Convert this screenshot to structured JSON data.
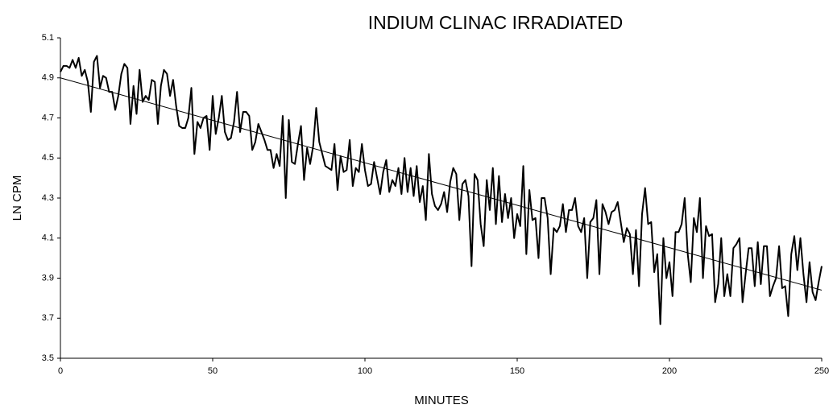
{
  "chart_data": {
    "type": "line",
    "title": "INDIUM CLINAC IRRADIATED",
    "x_label": "MINUTES",
    "y_label": "LN CPM",
    "xlim": [
      0,
      250
    ],
    "xticks": [
      0,
      50,
      100,
      150,
      200,
      250
    ],
    "ylim": [
      3.5,
      5.1
    ],
    "yticks": [
      3.5,
      3.7,
      3.9,
      4.1,
      4.3,
      4.5,
      4.7,
      4.9,
      5.1
    ],
    "grid": false,
    "x": [
      0,
      1,
      2,
      3,
      4,
      5,
      6,
      7,
      8,
      9,
      10,
      11,
      12,
      13,
      14,
      15,
      16,
      17,
      18,
      19,
      20,
      21,
      22,
      23,
      24,
      25,
      26,
      27,
      28,
      29,
      30,
      31,
      32,
      33,
      34,
      35,
      36,
      37,
      38,
      39,
      40,
      41,
      42,
      43,
      44,
      45,
      46,
      47,
      48,
      49,
      50,
      51,
      52,
      53,
      54,
      55,
      56,
      57,
      58,
      59,
      60,
      61,
      62,
      63,
      64,
      65,
      66,
      67,
      68,
      69,
      70,
      71,
      72,
      73,
      74,
      75,
      76,
      77,
      78,
      79,
      80,
      81,
      82,
      83,
      84,
      85,
      86,
      87,
      88,
      89,
      90,
      91,
      92,
      93,
      94,
      95,
      96,
      97,
      98,
      99,
      100,
      101,
      102,
      103,
      104,
      105,
      106,
      107,
      108,
      109,
      110,
      111,
      112,
      113,
      114,
      115,
      116,
      117,
      118,
      119,
      120,
      121,
      122,
      123,
      124,
      125,
      126,
      127,
      128,
      129,
      130,
      131,
      132,
      133,
      134,
      135,
      136,
      137,
      138,
      139,
      140,
      141,
      142,
      143,
      144,
      145,
      146,
      147,
      148,
      149,
      150,
      151,
      152,
      153,
      154,
      155,
      156,
      157,
      158,
      159,
      160,
      161,
      162,
      163,
      164,
      165,
      166,
      167,
      168,
      169,
      170,
      171,
      172,
      173,
      174,
      175,
      176,
      177,
      178,
      179,
      180,
      181,
      182,
      183,
      184,
      185,
      186,
      187,
      188,
      189,
      190,
      191,
      192,
      193,
      194,
      195,
      196,
      197,
      198,
      199,
      200,
      201,
      202,
      203,
      204,
      205,
      206,
      207,
      208,
      209,
      210,
      211,
      212,
      213,
      214,
      215,
      216,
      217,
      218,
      219,
      220,
      221,
      222,
      223,
      224,
      225,
      226,
      227,
      228,
      229,
      230,
      231,
      232,
      233,
      234,
      235,
      236,
      237,
      238,
      239,
      240,
      241,
      242,
      243,
      244,
      245,
      246,
      247,
      248,
      249,
      250
    ],
    "series": [
      {
        "color": "#000000",
        "values": [
          4.93,
          4.96,
          4.96,
          4.95,
          4.99,
          4.95,
          5.0,
          4.91,
          4.94,
          4.88,
          4.73,
          4.98,
          5.01,
          4.85,
          4.91,
          4.9,
          4.83,
          4.83,
          4.74,
          4.81,
          4.92,
          4.97,
          4.95,
          4.67,
          4.86,
          4.72,
          4.94,
          4.78,
          4.81,
          4.79,
          4.89,
          4.88,
          4.67,
          4.86,
          4.94,
          4.92,
          4.81,
          4.89,
          4.76,
          4.66,
          4.65,
          4.65,
          4.7,
          4.85,
          4.52,
          4.68,
          4.65,
          4.7,
          4.71,
          4.54,
          4.81,
          4.62,
          4.7,
          4.81,
          4.63,
          4.59,
          4.6,
          4.68,
          4.83,
          4.63,
          4.73,
          4.73,
          4.71,
          4.54,
          4.58,
          4.67,
          4.63,
          4.59,
          4.54,
          4.54,
          4.45,
          4.52,
          4.46,
          4.71,
          4.3,
          4.69,
          4.48,
          4.47,
          4.57,
          4.66,
          4.39,
          4.55,
          4.47,
          4.56,
          4.75,
          4.58,
          4.52,
          4.46,
          4.45,
          4.44,
          4.57,
          4.34,
          4.51,
          4.43,
          4.44,
          4.59,
          4.36,
          4.45,
          4.43,
          4.57,
          4.44,
          4.36,
          4.37,
          4.48,
          4.4,
          4.32,
          4.43,
          4.49,
          4.33,
          4.39,
          4.36,
          4.45,
          4.32,
          4.5,
          4.33,
          4.45,
          4.31,
          4.46,
          4.28,
          4.36,
          4.19,
          4.52,
          4.32,
          4.26,
          4.24,
          4.27,
          4.33,
          4.23,
          4.38,
          4.45,
          4.42,
          4.19,
          4.37,
          4.39,
          4.31,
          3.96,
          4.42,
          4.39,
          4.17,
          4.06,
          4.39,
          4.24,
          4.45,
          4.17,
          4.41,
          4.18,
          4.32,
          4.2,
          4.3,
          4.1,
          4.22,
          4.16,
          4.46,
          4.02,
          4.34,
          4.19,
          4.2,
          4.0,
          4.3,
          4.3,
          4.2,
          3.92,
          4.15,
          4.13,
          4.16,
          4.27,
          4.13,
          4.24,
          4.24,
          4.3,
          4.16,
          4.13,
          4.2,
          3.9,
          4.18,
          4.2,
          4.29,
          3.92,
          4.27,
          4.23,
          4.17,
          4.23,
          4.24,
          4.28,
          4.18,
          4.08,
          4.15,
          4.12,
          3.92,
          4.14,
          3.86,
          4.22,
          4.35,
          4.17,
          4.18,
          3.93,
          4.02,
          3.67,
          4.1,
          3.9,
          3.98,
          3.81,
          4.13,
          4.13,
          4.17,
          4.3,
          4.02,
          3.88,
          4.2,
          4.13,
          4.3,
          3.9,
          4.16,
          4.11,
          4.12,
          3.78,
          3.87,
          4.1,
          3.81,
          3.92,
          3.81,
          4.05,
          4.07,
          4.1,
          3.78,
          3.92,
          4.05,
          4.05,
          3.86,
          4.08,
          3.87,
          4.06,
          4.06,
          3.81,
          3.86,
          3.9,
          4.06,
          3.85,
          3.86,
          3.71,
          4.02,
          4.11,
          3.94,
          4.1,
          3.92,
          3.78,
          3.98,
          3.83,
          3.79,
          3.88,
          3.96
        ]
      },
      {
        "color": "#000000",
        "x": [
          0,
          250
        ],
        "values": [
          4.9,
          3.84
        ]
      }
    ]
  }
}
